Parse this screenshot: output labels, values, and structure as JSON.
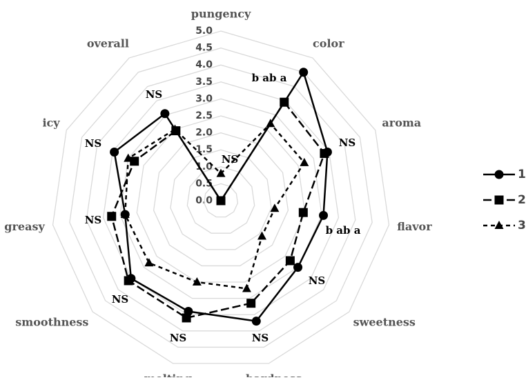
{
  "chart_data": {
    "type": "radar",
    "categories": [
      "pungency",
      "color",
      "aroma",
      "flavor",
      "sweetness",
      "hardness",
      "melting",
      "smoothness",
      "greasy",
      "icy",
      "overall"
    ],
    "annotations": [
      "NS",
      "b  ab  a",
      "NS",
      "b  ab  a",
      "NS",
      "NS",
      "NS",
      "NS",
      "NS",
      "NS",
      "NS"
    ],
    "series": [
      {
        "name": "1",
        "color": "#000000",
        "marker": "circle",
        "line_style": "solid",
        "values": [
          0,
          4.5,
          3.45,
          3.05,
          3.0,
          3.7,
          3.4,
          3.5,
          2.85,
          3.45,
          3.05
        ]
      },
      {
        "name": "2",
        "color": "#000000",
        "marker": "square",
        "line_style": "long-dash",
        "values": [
          0,
          3.45,
          3.35,
          2.45,
          2.7,
          3.15,
          3.6,
          3.6,
          3.25,
          2.8,
          2.45
        ]
      },
      {
        "name": "3",
        "color": "#000000",
        "marker": "triangle",
        "line_style": "short-dash",
        "values": [
          0.8,
          2.7,
          2.7,
          1.6,
          1.6,
          2.7,
          2.5,
          2.8,
          2.85,
          3.0,
          2.5
        ]
      }
    ],
    "rlim": [
      0,
      5
    ],
    "rticks": [
      {
        "value": 0,
        "label": "0.0"
      },
      {
        "value": 0.5,
        "label": "0.5"
      },
      {
        "value": 1,
        "label": "1.0"
      },
      {
        "value": 1.5,
        "label": "1.5"
      },
      {
        "value": 2,
        "label": "2.0"
      },
      {
        "value": 2.5,
        "label": "2.5"
      },
      {
        "value": 3,
        "label": "3.0"
      },
      {
        "value": 3.5,
        "label": "3.5"
      },
      {
        "value": 4,
        "label": "4.0"
      },
      {
        "value": 4.5,
        "label": "4.5"
      },
      {
        "value": 5,
        "label": "5.0"
      }
    ],
    "grid": true,
    "legend": "right"
  }
}
